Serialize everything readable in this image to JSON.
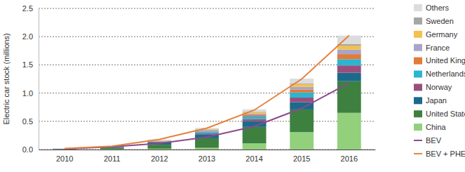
{
  "chart_data": {
    "type": "bar",
    "stacked": true,
    "grid": true,
    "legend": "right",
    "y_label": "Electric car stock (millions)",
    "categories": [
      "2010",
      "2011",
      "2012",
      "2013",
      "2014",
      "2015",
      "2016"
    ],
    "ylim": [
      0,
      2.5
    ],
    "yticks": [
      {
        "value": 0,
        "label": "0.0"
      },
      0.5,
      {
        "value": 1,
        "label": "1.0"
      },
      1.5,
      {
        "value": 2,
        "label": "2.0"
      },
      2.5
    ],
    "series": [
      {
        "name": "China",
        "type": "bar",
        "color": "#92d07c",
        "values": [
          0.002,
          0.007,
          0.015,
          0.03,
          0.11,
          0.31,
          0.65
        ]
      },
      {
        "name": "United States",
        "type": "bar",
        "color": "#3e8040",
        "values": [
          0.004,
          0.02,
          0.07,
          0.17,
          0.29,
          0.4,
          0.56
        ]
      },
      {
        "name": "Japan",
        "type": "bar",
        "color": "#1b6a8c",
        "values": [
          0.004,
          0.015,
          0.04,
          0.07,
          0.1,
          0.13,
          0.15
        ]
      },
      {
        "name": "Norway",
        "type": "bar",
        "color": "#9a4f7b",
        "values": [
          0.003,
          0.005,
          0.01,
          0.02,
          0.04,
          0.08,
          0.13
        ]
      },
      {
        "name": "Netherlands",
        "type": "bar",
        "color": "#2bb5d1",
        "values": [
          0.001,
          0.002,
          0.007,
          0.03,
          0.045,
          0.09,
          0.11
        ]
      },
      {
        "name": "United Kingdom",
        "type": "bar",
        "color": "#e07b39",
        "values": [
          0.001,
          0.002,
          0.005,
          0.01,
          0.025,
          0.05,
          0.09
        ]
      },
      {
        "name": "France",
        "type": "bar",
        "color": "#a9a4c9",
        "values": [
          0.001,
          0.003,
          0.01,
          0.02,
          0.03,
          0.05,
          0.08
        ]
      },
      {
        "name": "Germany",
        "type": "bar",
        "color": "#f2c14e",
        "values": [
          0.001,
          0.002,
          0.005,
          0.01,
          0.025,
          0.05,
          0.07
        ]
      },
      {
        "name": "Sweden",
        "type": "bar",
        "color": "#a6a6a6",
        "values": [
          0.0005,
          0.001,
          0.002,
          0.004,
          0.008,
          0.015,
          0.03
        ]
      },
      {
        "name": "Others",
        "type": "bar",
        "color": "#dcdcdc",
        "values": [
          0.004,
          0.005,
          0.015,
          0.02,
          0.04,
          0.08,
          0.15
        ]
      },
      {
        "name": "BEV",
        "type": "line",
        "color": "#8b4a8e",
        "values": [
          0.01,
          0.05,
          0.11,
          0.22,
          0.41,
          0.73,
          1.18
        ]
      },
      {
        "name": "BEV + PHEV",
        "type": "line",
        "color": "#e5823c",
        "values": [
          0.02,
          0.06,
          0.18,
          0.38,
          0.7,
          1.25,
          2.02
        ]
      }
    ]
  }
}
